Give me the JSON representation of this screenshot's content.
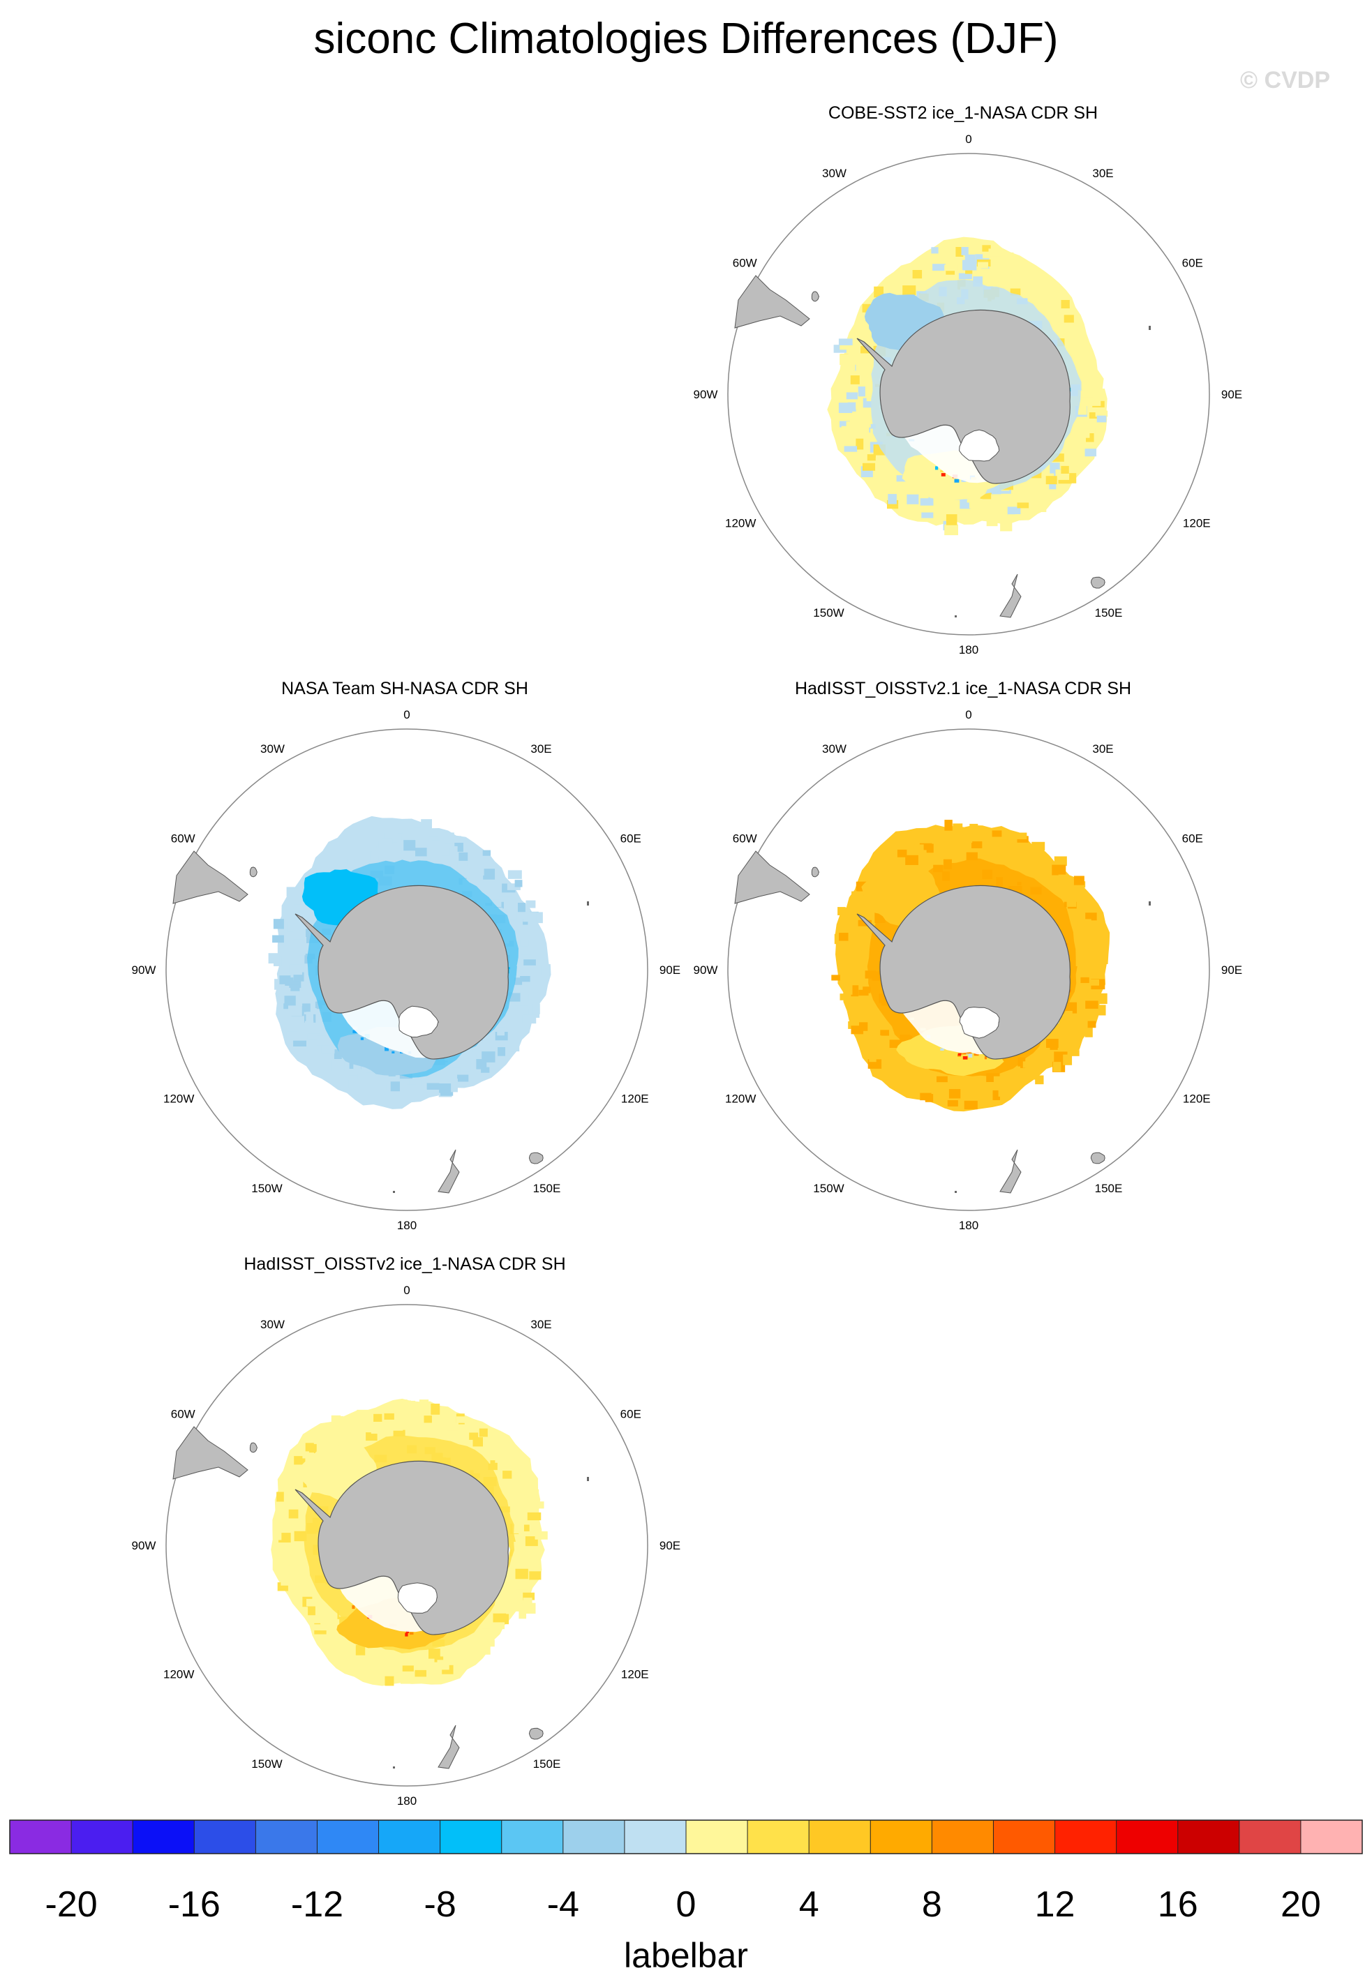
{
  "title": "siconc Climatologies Differences (DJF)",
  "watermark": "© CVDP",
  "panels": [
    {
      "id": "cobe",
      "title": "COBE-SST2 ice_1-NASA CDR SH",
      "pattern": "mixed-yellow-blue"
    },
    {
      "id": "nasateam",
      "title": "NASA Team SH-NASA CDR SH",
      "pattern": "blue"
    },
    {
      "id": "hadoi21",
      "title": "HadISST_OISSTv2.1 ice_1-NASA CDR SH",
      "pattern": "orange"
    },
    {
      "id": "hadoi2",
      "title": "HadISST_OISSTv2 ice_1-NASA CDR SH",
      "pattern": "yellow"
    }
  ],
  "lon_labels": [
    "0",
    "30E",
    "60E",
    "90E",
    "120E",
    "150E",
    "180",
    "150W",
    "120W",
    "90W",
    "60W",
    "30W"
  ],
  "labelbar": {
    "title": "labelbar",
    "tick_labels": [
      "-20",
      "-16",
      "-12",
      "-8",
      "-4",
      "0",
      "4",
      "8",
      "12",
      "16",
      "20"
    ],
    "colors": [
      "#8a2be2",
      "#4b1ef0",
      "#0b10f7",
      "#2c4ee8",
      "#3a78ea",
      "#2f88f5",
      "#16a7f8",
      "#02bff9",
      "#5bc6f3",
      "#9dd0ec",
      "#bfe0f2",
      "#fff79a",
      "#ffe14a",
      "#ffc824",
      "#ffaa00",
      "#ff8a00",
      "#ff5a00",
      "#ff2200",
      "#ee0000",
      "#cc0000",
      "#e04545",
      "#ffb2b2"
    ]
  },
  "colors": {
    "land": "#bdbdbd",
    "circle": "#888888"
  }
}
